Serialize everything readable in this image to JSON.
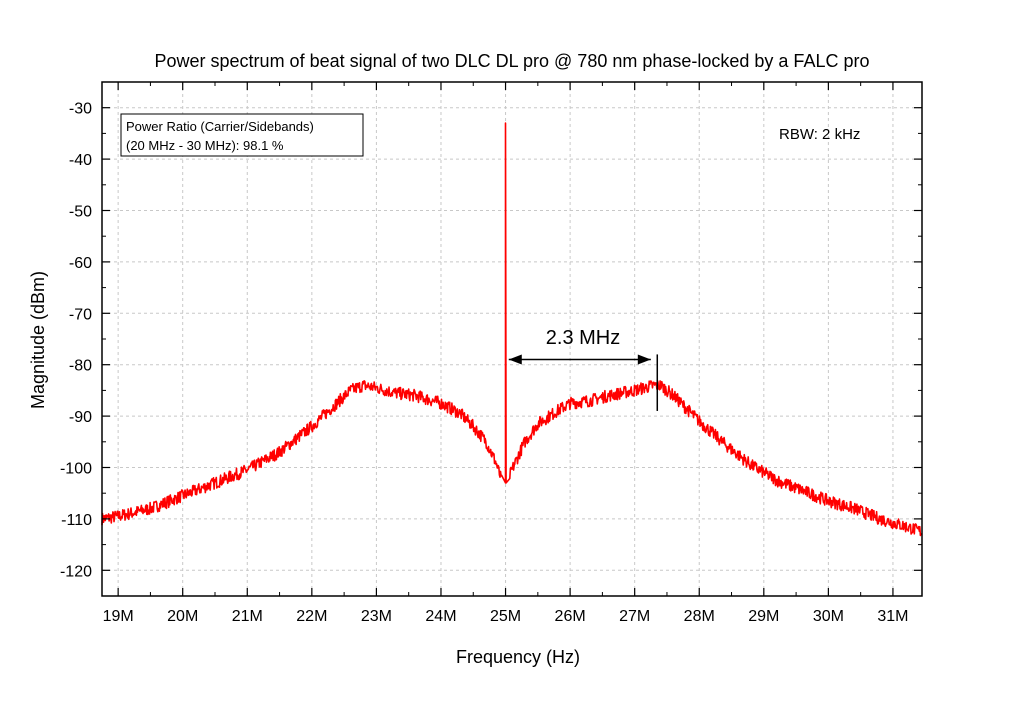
{
  "chart_data": {
    "type": "line",
    "title": "Power spectrum of beat signal of two DLC DL pro @ 780 nm phase-locked by a FALC pro",
    "xlabel": "Frequency (Hz)",
    "ylabel": "Magnitude (dBm)",
    "xlim": [
      18750000,
      31450000
    ],
    "ylim": [
      -125,
      -25
    ],
    "x_ticks": [
      19000000,
      20000000,
      21000000,
      22000000,
      23000000,
      24000000,
      25000000,
      26000000,
      27000000,
      28000000,
      29000000,
      30000000,
      31000000
    ],
    "x_tick_labels": [
      "19M",
      "20M",
      "21M",
      "22M",
      "23M",
      "24M",
      "25M",
      "26M",
      "27M",
      "28M",
      "29M",
      "30M",
      "31M"
    ],
    "y_ticks": [
      -30,
      -40,
      -50,
      -60,
      -70,
      -80,
      -90,
      -100,
      -110,
      -120
    ],
    "y_tick_labels": [
      "-30",
      "-40",
      "-50",
      "-60",
      "-70",
      "-80",
      "-90",
      "-100",
      "-110",
      "-120"
    ],
    "grid": true,
    "line_color": "#ff0000",
    "series": [
      {
        "x": [
          18750000,
          19000000,
          19500000,
          20000000,
          20500000,
          21000000,
          21500000,
          22000000,
          22300000,
          22600000,
          22800000,
          23000000,
          23300000,
          23600000,
          24000000,
          24300000,
          24500000,
          24700000,
          24850000,
          24950000,
          25000000,
          25050000,
          25150000,
          25300000,
          25500000,
          25800000,
          26000000,
          26300000,
          26600000,
          27000000,
          27300000,
          27400000,
          27600000,
          28000000,
          28400000,
          28800000,
          29200000,
          29600000,
          30000000,
          30400000,
          30800000,
          31200000,
          31450000
        ],
        "y": [
          -110,
          -109.5,
          -108,
          -105.5,
          -103,
          -100.5,
          -97,
          -92,
          -88.5,
          -85,
          -84,
          -84.5,
          -85.5,
          -86,
          -87.5,
          -89.5,
          -92,
          -95,
          -99,
          -103,
          -33,
          -102,
          -99,
          -95,
          -91.5,
          -89,
          -87.5,
          -87,
          -86,
          -85,
          -84,
          -84,
          -86,
          -91,
          -95.5,
          -99.5,
          -102.5,
          -104.5,
          -106.5,
          -108,
          -110,
          -111.5,
          -112.5
        ]
      }
    ],
    "carrier": {
      "x": 25000000,
      "y": -33
    },
    "annotations": {
      "box_line1": "Power Ratio (Carrier/Sidebands)",
      "box_line2": "(20 MHz - 30 MHz): 98.1 %",
      "rbw": "RBW: 2 kHz",
      "arrow_label": "2.3 MHz",
      "arrow_x": [
        25050000,
        27250000
      ],
      "arrow_y": -79,
      "marker_x": 27350000,
      "marker_y": [
        -78,
        -89
      ]
    }
  }
}
